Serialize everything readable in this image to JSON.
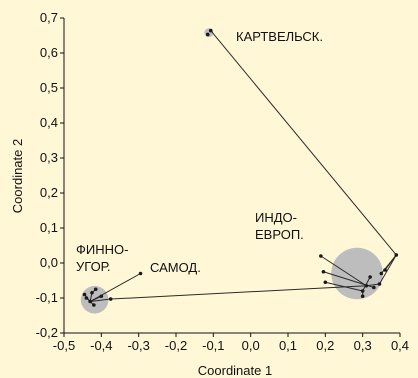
{
  "colors": {
    "background": "#FFF7D6",
    "point": "#1A1A1A",
    "line": "#2A2A2A",
    "cluster_fill": "#BDBDBD"
  },
  "chart_data": {
    "type": "scatter",
    "xlabel": "Coordinate 1",
    "ylabel": "Coordinate 2",
    "xlim": [
      -0.5,
      0.4
    ],
    "ylim": [
      -0.2,
      0.7
    ],
    "x_ticks": [
      "-0,5",
      "-0,4",
      "-0,3",
      "-0,2",
      "-0,1",
      "0,0",
      "0,1",
      "0,2",
      "0,3",
      "0,4"
    ],
    "y_ticks": [
      "-0,2",
      "-0,1",
      "0,0",
      "0,1",
      "0,2",
      "0,3",
      "0,4",
      "0,5",
      "0,6",
      "0,7"
    ],
    "grid": false,
    "clusters": [
      {
        "label": "КАРТВЕЛЬСК.",
        "center": [
          -0.112,
          0.658
        ],
        "radius_x": 0.012,
        "points": [
          [
            -0.115,
            0.653
          ],
          [
            -0.107,
            0.664
          ]
        ]
      },
      {
        "label": "ИНДО-\nЕВРОП.",
        "center": [
          0.285,
          -0.03
        ],
        "radius_x": 0.069,
        "points": [
          [
            0.188,
            0.02
          ],
          [
            0.195,
            -0.025
          ],
          [
            0.2,
            -0.055
          ],
          [
            0.3,
            -0.08
          ],
          [
            0.3,
            -0.095
          ],
          [
            0.31,
            -0.065
          ],
          [
            0.32,
            -0.04
          ],
          [
            0.33,
            -0.07
          ],
          [
            0.345,
            -0.06
          ],
          [
            0.35,
            -0.03
          ],
          [
            0.36,
            -0.02
          ],
          [
            0.39,
            0.023
          ]
        ]
      },
      {
        "label": "ФИННО-\nУГОР.",
        "center": [
          -0.418,
          -0.105
        ],
        "radius_x": 0.037,
        "points": [
          [
            -0.445,
            -0.09
          ],
          [
            -0.44,
            -0.1
          ],
          [
            -0.43,
            -0.11
          ],
          [
            -0.425,
            -0.085
          ],
          [
            -0.415,
            -0.075
          ],
          [
            -0.42,
            -0.12
          ],
          [
            -0.4,
            -0.095
          ],
          [
            -0.375,
            -0.103
          ]
        ]
      }
    ],
    "extra_points": [
      {
        "label": "САМОД.",
        "point": [
          -0.295,
          -0.03
        ]
      }
    ],
    "edges": [
      [
        [
          -0.107,
          0.664
        ],
        [
          0.39,
          0.023
        ]
      ],
      [
        [
          0.39,
          0.023
        ],
        [
          0.35,
          -0.03
        ]
      ],
      [
        [
          0.39,
          0.023
        ],
        [
          0.345,
          -0.06
        ]
      ],
      [
        [
          0.39,
          0.023
        ],
        [
          0.36,
          -0.02
        ]
      ],
      [
        [
          0.188,
          0.02
        ],
        [
          0.31,
          -0.065
        ]
      ],
      [
        [
          0.195,
          -0.025
        ],
        [
          0.33,
          -0.07
        ]
      ],
      [
        [
          0.2,
          -0.055
        ],
        [
          0.3,
          -0.08
        ]
      ],
      [
        [
          0.3,
          -0.08
        ],
        [
          0.3,
          -0.095
        ]
      ],
      [
        [
          0.32,
          -0.04
        ],
        [
          0.3,
          -0.08
        ]
      ],
      [
        [
          0.345,
          -0.06
        ],
        [
          0.31,
          -0.065
        ]
      ],
      [
        [
          0.31,
          -0.065
        ],
        [
          -0.375,
          -0.103
        ]
      ],
      [
        [
          -0.295,
          -0.03
        ],
        [
          -0.43,
          -0.11
        ]
      ],
      [
        [
          -0.375,
          -0.103
        ],
        [
          -0.43,
          -0.11
        ]
      ],
      [
        [
          -0.445,
          -0.09
        ],
        [
          -0.43,
          -0.11
        ]
      ],
      [
        [
          -0.44,
          -0.1
        ],
        [
          -0.43,
          -0.11
        ]
      ],
      [
        [
          -0.425,
          -0.085
        ],
        [
          -0.43,
          -0.11
        ]
      ],
      [
        [
          -0.415,
          -0.075
        ],
        [
          -0.425,
          -0.085
        ]
      ],
      [
        [
          -0.42,
          -0.12
        ],
        [
          -0.43,
          -0.11
        ]
      ],
      [
        [
          -0.4,
          -0.095
        ],
        [
          -0.43,
          -0.11
        ]
      ]
    ]
  }
}
